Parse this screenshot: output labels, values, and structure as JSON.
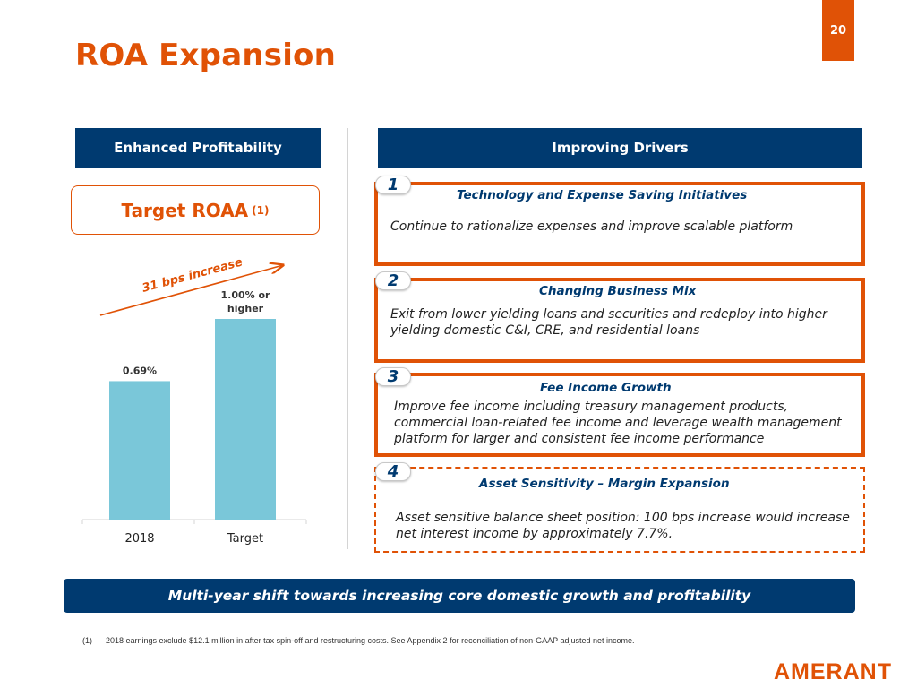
{
  "page": {
    "number": "20",
    "title": "ROA Expansion"
  },
  "left_panel": {
    "header": "Enhanced Profitability",
    "target_label": "Target ROAA",
    "target_footnote_ref": "(1)",
    "trend_label": "31 bps increase"
  },
  "right_panel": {
    "header": "Improving Drivers",
    "drivers": [
      {
        "number": "1",
        "title": "Technology and Expense Saving Initiatives",
        "text": "Continue to rationalize expenses and improve scalable platform"
      },
      {
        "number": "2",
        "title": "Changing Business Mix",
        "text": "Exit from lower yielding loans and securities and redeploy into higher yielding domestic C&I, CRE, and residential loans"
      },
      {
        "number": "3",
        "title": "Fee Income Growth",
        "text": "Improve fee income including treasury management products, commercial loan-related fee income and leverage wealth management platform for larger and consistent fee income performance"
      },
      {
        "number": "4",
        "title": "Asset Sensitivity – Margin Expansion",
        "text": "Asset sensitive balance sheet position: 100 bps increase would increase net interest income by approximately 7.7%."
      }
    ]
  },
  "banner": "Multi-year shift towards increasing core domestic growth and profitability",
  "footnote": {
    "mark": "(1)",
    "text": "2018 earnings exclude $12.1 million in after tax spin-off and restructuring costs. See Appendix 2 for reconciliation of non-GAAP adjusted net income."
  },
  "logo": "AMERANT",
  "colors": {
    "accent": "#e05206",
    "navy": "#003a70",
    "bar": "#7ac7d9"
  },
  "chart_data": {
    "type": "bar",
    "categories": [
      "2018",
      "Target"
    ],
    "values": [
      0.69,
      1.0
    ],
    "data_labels": [
      "0.69%",
      "1.00% or higher"
    ],
    "ylim": [
      0,
      1.0
    ],
    "title": "",
    "xlabel": "",
    "ylabel": "",
    "annotation": "31 bps increase"
  }
}
